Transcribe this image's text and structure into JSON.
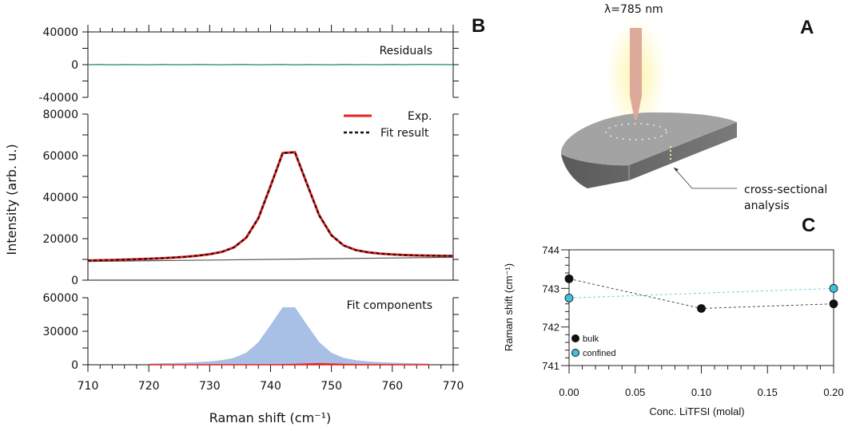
{
  "panels": {
    "A": {
      "letter": "A",
      "laser_label": "λ=785 nm",
      "annotation": [
        "cross-sectional",
        "analysis"
      ]
    },
    "B": {
      "letter": "B"
    },
    "C": {
      "letter": "C"
    }
  },
  "chart_data": [
    {
      "panel": "B",
      "type": "line",
      "xlabel": "Raman shift (cm⁻¹)",
      "ylabel": "Intensity (arb. u.)",
      "xlim": [
        710,
        770
      ],
      "xticks": [
        "710",
        "720",
        "730",
        "740",
        "750",
        "760",
        "770"
      ],
      "x": [
        710,
        712,
        714,
        716,
        718,
        720,
        722,
        724,
        726,
        728,
        730,
        732,
        734,
        736,
        738,
        740,
        742,
        744,
        746,
        748,
        750,
        752,
        754,
        756,
        758,
        760,
        762,
        764,
        766,
        768,
        770
      ],
      "subplots": {
        "residuals": {
          "label": "Residuals",
          "ylim": [
            -40000,
            40000
          ],
          "yticks": [
            "40000",
            "0",
            "-40000"
          ],
          "color": "#3a9c8a",
          "values": [
            0,
            200,
            -150,
            100,
            0,
            -200,
            150,
            0,
            -100,
            200,
            0,
            -150,
            100,
            300,
            -200,
            0,
            250,
            -250,
            100,
            0,
            -200,
            150,
            0,
            100,
            -100,
            200,
            0,
            150,
            300,
            100,
            0
          ]
        },
        "main": {
          "ylim": [
            0,
            80000
          ],
          "yticks": [
            "80000",
            "60000",
            "40000",
            "20000",
            "0"
          ],
          "legend": [
            {
              "name": "Exp.",
              "color": "#e8231f",
              "style": "solid"
            },
            {
              "name": "Fit result",
              "color": "#111111",
              "style": "dashed"
            }
          ],
          "series": [
            {
              "name": "Exp.",
              "values": [
                9470,
                9600,
                9740,
                9900,
                10080,
                10280,
                10530,
                10840,
                11230,
                11750,
                12490,
                13630,
                15800,
                20440,
                29900,
                45360,
                61260,
                61650,
                46270,
                31240,
                21610,
                16730,
                14510,
                13430,
                12790,
                12400,
                12120,
                11930,
                11820,
                11740,
                11700
              ]
            },
            {
              "name": "Fit result",
              "values": [
                9470,
                9600,
                9740,
                9900,
                10080,
                10280,
                10530,
                10840,
                11230,
                11750,
                12490,
                13630,
                15800,
                20440,
                29900,
                45360,
                61260,
                61650,
                46270,
                31240,
                21610,
                16730,
                14510,
                13430,
                12790,
                12400,
                12120,
                11930,
                11820,
                11740,
                11700
              ]
            }
          ],
          "baseline": {
            "x": [
              710,
              770
            ],
            "values": [
              9000,
              11000
            ],
            "color": "#555555"
          }
        },
        "components": {
          "label": "Fit components",
          "ylim": [
            0,
            60000
          ],
          "yticks": [
            "60000",
            "30000",
            "0"
          ],
          "series": [
            {
              "color": "#a8bfe6",
              "values": [
                470,
                530,
                610,
                700,
                810,
                950,
                1130,
                1370,
                1700,
                2150,
                2820,
                3900,
                6000,
                10570,
                19970,
                35360,
                51190,
                51190,
                35360,
                19970,
                10570,
                6000,
                3900,
                2820,
                2150,
                1700,
                1370,
                1130,
                950,
                810,
                700
              ]
            },
            {
              "color": "#e8231f",
              "values": [
                0,
                0,
                0,
                0,
                0,
                0,
                0,
                0,
                0,
                0,
                0,
                0,
                0,
                0,
                0,
                0,
                40,
                330,
                710,
                1000,
                710,
                330,
                144,
                74,
                40,
                30,
                20,
                0,
                0,
                0,
                0
              ]
            }
          ]
        }
      }
    },
    {
      "panel": "C",
      "type": "scatter",
      "xlabel": "Conc. LiTFSI  (molal)",
      "ylabel": "Raman shift   (cm⁻¹)",
      "xlim": [
        0,
        0.2
      ],
      "ylim": [
        741,
        744
      ],
      "xticks": [
        "0.00",
        "0.05",
        "0.10",
        "0.15",
        "0.20"
      ],
      "yticks": [
        "744",
        "743",
        "742",
        "741"
      ],
      "legend_position": "bottom-left",
      "series": [
        {
          "name": "bulk",
          "color": "#111111",
          "x": [
            0,
            0.1,
            0.2
          ],
          "y": [
            743.25,
            742.48,
            742.6
          ]
        },
        {
          "name": "confined",
          "color": "#3fc0dc",
          "x": [
            0,
            0.2
          ],
          "y": [
            742.75,
            743.0
          ]
        }
      ]
    }
  ]
}
